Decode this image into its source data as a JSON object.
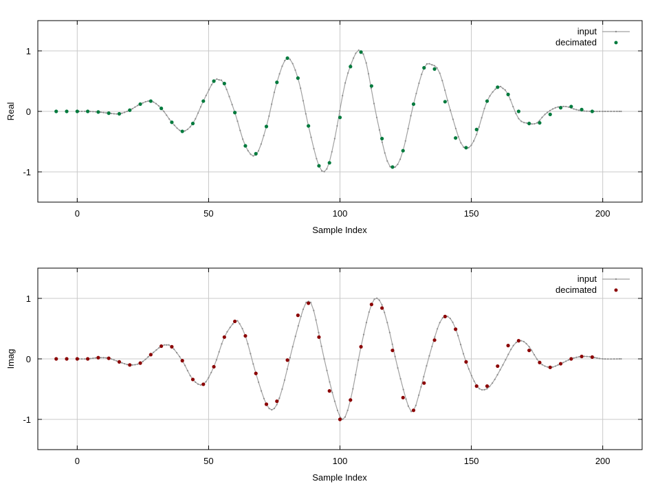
{
  "chart_data": [
    {
      "type": "line",
      "ylabel": "Real",
      "xlabel": "Sample Index",
      "xlim": [
        -15,
        215
      ],
      "ylim": [
        -1.5,
        1.5
      ],
      "xticks": [
        0,
        50,
        100,
        150,
        200
      ],
      "yticks": [
        -1,
        0,
        1
      ],
      "xtick_labels": [
        "0",
        "50",
        "100",
        "150",
        "200"
      ],
      "ytick_labels": [
        "-1",
        "0",
        "1"
      ],
      "grid": true,
      "legend_position": "top-right",
      "legend": [
        "input",
        "decimated"
      ],
      "colors": {
        "input": "#a0a0a0",
        "decimated": "#007a3d"
      },
      "series": [
        {
          "name": "input",
          "x": [
            0,
            4,
            8,
            12,
            16,
            20,
            24,
            28,
            32,
            36,
            40,
            44,
            48,
            52,
            54,
            56,
            60,
            64,
            68,
            72,
            76,
            80,
            84,
            88,
            92,
            95,
            98,
            102,
            106,
            108,
            110,
            114,
            118,
            121,
            124,
            128,
            132,
            135,
            138,
            142,
            146,
            149,
            152,
            156,
            160,
            162,
            164,
            168,
            172,
            175,
            178,
            182,
            186,
            189,
            192,
            196,
            200,
            207
          ],
          "y": [
            0,
            0,
            -0.01,
            -0.03,
            -0.04,
            0.02,
            0.12,
            0.17,
            0.05,
            -0.18,
            -0.33,
            -0.2,
            0.17,
            0.5,
            0.52,
            0.45,
            -0.02,
            -0.57,
            -0.72,
            -0.25,
            0.48,
            0.88,
            0.55,
            -0.24,
            -0.9,
            -0.95,
            -0.45,
            0.47,
            0.96,
            0.98,
            0.8,
            -0.1,
            -0.82,
            -0.92,
            -0.65,
            0.12,
            0.72,
            0.77,
            0.63,
            0.02,
            -0.52,
            -0.6,
            -0.38,
            0.17,
            0.4,
            0.38,
            0.28,
            -0.12,
            -0.2,
            -0.19,
            -0.05,
            0.06,
            0.08,
            0.04,
            0.01,
            0,
            0,
            0
          ]
        },
        {
          "name": "decimated",
          "x": [
            -8,
            -4,
            0,
            4,
            8,
            12,
            16,
            20,
            24,
            28,
            32,
            36,
            40,
            44,
            48,
            52,
            56,
            60,
            64,
            68,
            72,
            76,
            80,
            84,
            88,
            92,
            96,
            100,
            104,
            108,
            112,
            116,
            120,
            124,
            128,
            132,
            136,
            140,
            144,
            148,
            152,
            156,
            160,
            164,
            168,
            172,
            176,
            180,
            184,
            188,
            192,
            196
          ],
          "y": [
            0,
            0,
            0,
            0,
            -0.01,
            -0.03,
            -0.04,
            0.02,
            0.12,
            0.17,
            0.05,
            -0.18,
            -0.33,
            -0.2,
            0.17,
            0.5,
            0.46,
            -0.02,
            -0.57,
            -0.7,
            -0.25,
            0.48,
            0.88,
            0.55,
            -0.24,
            -0.9,
            -0.85,
            -0.1,
            0.74,
            0.98,
            0.42,
            -0.45,
            -0.92,
            -0.65,
            0.12,
            0.72,
            0.7,
            0.16,
            -0.44,
            -0.6,
            -0.3,
            0.17,
            0.4,
            0.28,
            0,
            -0.2,
            -0.19,
            -0.05,
            0.06,
            0.08,
            0.03,
            0
          ]
        }
      ]
    },
    {
      "type": "line",
      "ylabel": "Imag",
      "xlabel": "Sample Index",
      "xlim": [
        -15,
        215
      ],
      "ylim": [
        -1.5,
        1.5
      ],
      "xticks": [
        0,
        50,
        100,
        150,
        200
      ],
      "yticks": [
        -1,
        0,
        1
      ],
      "xtick_labels": [
        "0",
        "50",
        "100",
        "150",
        "200"
      ],
      "ytick_labels": [
        "-1",
        "0",
        "1"
      ],
      "grid": true,
      "legend_position": "top-right",
      "legend": [
        "input",
        "decimated"
      ],
      "colors": {
        "input": "#a0a0a0",
        "decimated": "#8b0000"
      },
      "series": [
        {
          "name": "input",
          "x": [
            0,
            4,
            8,
            12,
            16,
            20,
            24,
            28,
            32,
            34,
            36,
            40,
            44,
            48,
            52,
            56,
            60,
            61,
            64,
            68,
            72,
            75,
            78,
            82,
            86,
            88,
            90,
            94,
            98,
            101,
            104,
            108,
            112,
            115,
            118,
            122,
            126,
            128,
            130,
            134,
            138,
            141,
            144,
            148,
            152,
            155,
            158,
            162,
            166,
            169,
            172,
            176,
            180,
            184,
            188,
            192,
            196,
            200,
            207
          ],
          "y": [
            0,
            0,
            0.02,
            0.01,
            -0.05,
            -0.1,
            -0.07,
            0.07,
            0.21,
            0.23,
            0.2,
            -0.03,
            -0.34,
            -0.42,
            -0.13,
            0.36,
            0.62,
            0.63,
            0.38,
            -0.24,
            -0.75,
            -0.82,
            -0.5,
            0.2,
            0.82,
            0.95,
            0.8,
            0.0,
            -0.7,
            -1.0,
            -0.68,
            0.2,
            0.9,
            0.97,
            0.6,
            -0.15,
            -0.78,
            -0.85,
            -0.6,
            0.05,
            0.6,
            0.7,
            0.5,
            -0.05,
            -0.44,
            -0.51,
            -0.4,
            -0.1,
            0.22,
            0.3,
            0.2,
            -0.06,
            -0.14,
            -0.08,
            0.0,
            0.04,
            0.03,
            0.0,
            0.0
          ]
        },
        {
          "name": "decimated",
          "x": [
            -8,
            -4,
            0,
            4,
            8,
            12,
            16,
            20,
            24,
            28,
            32,
            36,
            40,
            44,
            48,
            52,
            56,
            60,
            64,
            68,
            72,
            76,
            80,
            84,
            88,
            92,
            96,
            100,
            104,
            108,
            112,
            116,
            120,
            124,
            128,
            132,
            136,
            140,
            144,
            148,
            152,
            156,
            160,
            164,
            168,
            172,
            176,
            180,
            184,
            188,
            192,
            196
          ],
          "y": [
            0,
            0,
            0,
            0,
            0.02,
            0.01,
            -0.05,
            -0.1,
            -0.07,
            0.07,
            0.21,
            0.2,
            -0.03,
            -0.34,
            -0.42,
            -0.13,
            0.36,
            0.62,
            0.38,
            -0.24,
            -0.75,
            -0.7,
            -0.02,
            0.72,
            0.92,
            0.36,
            -0.53,
            -1.0,
            -0.68,
            0.2,
            0.9,
            0.84,
            0.14,
            -0.64,
            -0.85,
            -0.4,
            0.31,
            0.7,
            0.49,
            -0.05,
            -0.45,
            -0.45,
            -0.12,
            0.22,
            0.3,
            0.14,
            -0.06,
            -0.14,
            -0.08,
            0.0,
            0.04,
            0.03
          ]
        }
      ]
    }
  ]
}
